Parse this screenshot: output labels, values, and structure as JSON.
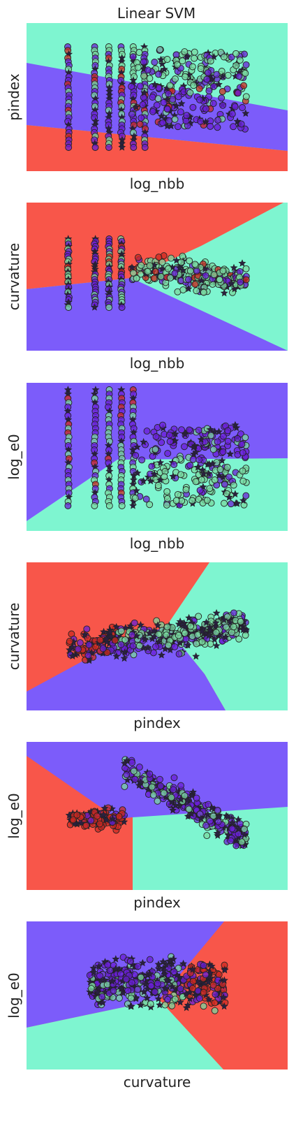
{
  "title": "Linear SVM",
  "colors": {
    "region_red": "#f8564a",
    "region_purple": "#7c5cfa",
    "region_teal": "#7ef5d0",
    "point_purple": "#6a1fd6",
    "point_teal": "#79d8a0",
    "point_red": "#cc2a22",
    "star": "#2a2040",
    "edge": "#222222"
  },
  "chart_data": [
    {
      "type": "scatter",
      "xlabel": "log_nbb",
      "ylabel": "pindex",
      "layers": [
        "decision-regions",
        "training-points (circles)",
        "test-points (stars)"
      ],
      "regions": [
        {
          "color": "teal",
          "area": "upper"
        },
        {
          "color": "purple",
          "area": "middle band"
        },
        {
          "color": "red",
          "area": "lower"
        }
      ],
      "cloud": {
        "columns": [
          0.16,
          0.26,
          0.32,
          0.36,
          0.4,
          0.44
        ],
        "spread_x": [
          0.16,
          0.85
        ],
        "spread_y": [
          0.15,
          0.85
        ]
      },
      "ticks": "hidden",
      "grid": false
    },
    {
      "type": "scatter",
      "xlabel": "log_nbb",
      "ylabel": "curvature",
      "regions": [
        {
          "color": "red",
          "area": "upper-left"
        },
        {
          "color": "teal",
          "area": "right"
        },
        {
          "color": "purple",
          "area": "lower-left"
        }
      ],
      "cloud": {
        "columns": [
          0.16,
          0.26,
          0.32,
          0.36
        ],
        "spread_x": [
          0.16,
          0.85
        ],
        "spread_y": [
          0.15,
          0.75
        ]
      },
      "ticks": "hidden",
      "grid": false
    },
    {
      "type": "scatter",
      "xlabel": "log_nbb",
      "ylabel": "log_e0",
      "regions": [
        {
          "color": "purple",
          "area": "upper"
        },
        {
          "color": "teal",
          "area": "lower"
        }
      ],
      "cloud": {
        "columns": [
          0.16,
          0.26,
          0.32,
          0.36,
          0.4
        ],
        "spread_x": [
          0.16,
          0.85
        ],
        "spread_y": [
          0.05,
          0.83
        ]
      },
      "ticks": "hidden",
      "grid": false
    },
    {
      "type": "scatter",
      "xlabel": "pindex",
      "ylabel": "curvature",
      "regions": [
        {
          "color": "red",
          "area": "left"
        },
        {
          "color": "teal",
          "area": "right"
        },
        {
          "color": "purple",
          "area": "bottom"
        }
      ],
      "cloud": {
        "spread_x": [
          0.16,
          0.85
        ],
        "spread_y": [
          0.25,
          0.75
        ]
      },
      "ticks": "hidden",
      "grid": false
    },
    {
      "type": "scatter",
      "xlabel": "pindex",
      "ylabel": "log_e0",
      "regions": [
        {
          "color": "purple",
          "area": "top"
        },
        {
          "color": "red",
          "area": "left"
        },
        {
          "color": "teal",
          "area": "lower-right"
        }
      ],
      "cloud": {
        "spread_x": [
          0.16,
          0.85
        ],
        "spread_y": [
          0.05,
          0.85
        ]
      },
      "ticks": "hidden",
      "grid": false
    },
    {
      "type": "scatter",
      "xlabel": "curvature",
      "ylabel": "log_e0",
      "regions": [
        {
          "color": "purple",
          "area": "upper-left"
        },
        {
          "color": "red",
          "area": "right"
        },
        {
          "color": "teal",
          "area": "lower-left"
        }
      ],
      "cloud": {
        "spread_x": [
          0.25,
          0.75
        ],
        "spread_y": [
          0.05,
          0.85
        ]
      },
      "ticks": "hidden",
      "grid": false
    }
  ]
}
